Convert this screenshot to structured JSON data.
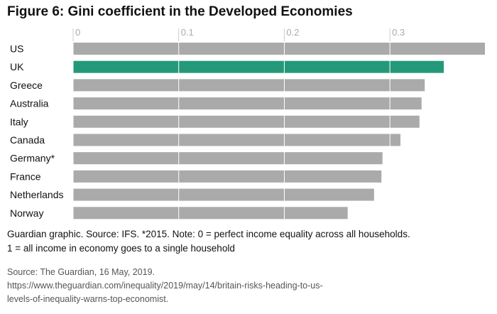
{
  "figure_title": "Figure 6: Gini coefficient in the Developed Economies",
  "chart_data": {
    "type": "bar",
    "orientation": "horizontal",
    "title": "Figure 6: Gini coefficient in the Developed Economies",
    "categories": [
      "US",
      "UK",
      "Greece",
      "Australia",
      "Italy",
      "Canada",
      "Germany*",
      "France",
      "Netherlands",
      "Norway"
    ],
    "values": [
      0.39,
      0.351,
      0.333,
      0.33,
      0.328,
      0.31,
      0.293,
      0.292,
      0.285,
      0.26
    ],
    "highlight_category": "UK",
    "x_ticks": [
      "0",
      "0.1",
      "0.2",
      "0.3"
    ],
    "xlim": [
      0,
      0.39
    ],
    "grid": true,
    "colors": {
      "default": "#aaaaaa",
      "highlight": "#24997a",
      "grid": "#ffffff"
    }
  },
  "note": {
    "line1": "Guardian graphic. Source: IFS. *2015. Note: 0 = perfect income equality across all households.",
    "line2": "1 = all income in economy goes to a single household"
  },
  "source": {
    "line1": "Source: The Guardian, 16 May, 2019.",
    "line2": "https://www.theguardian.com/inequality/2019/may/14/britain-risks-heading-to-us-",
    "line3": "levels-of-inequality-warns-top-economist."
  }
}
